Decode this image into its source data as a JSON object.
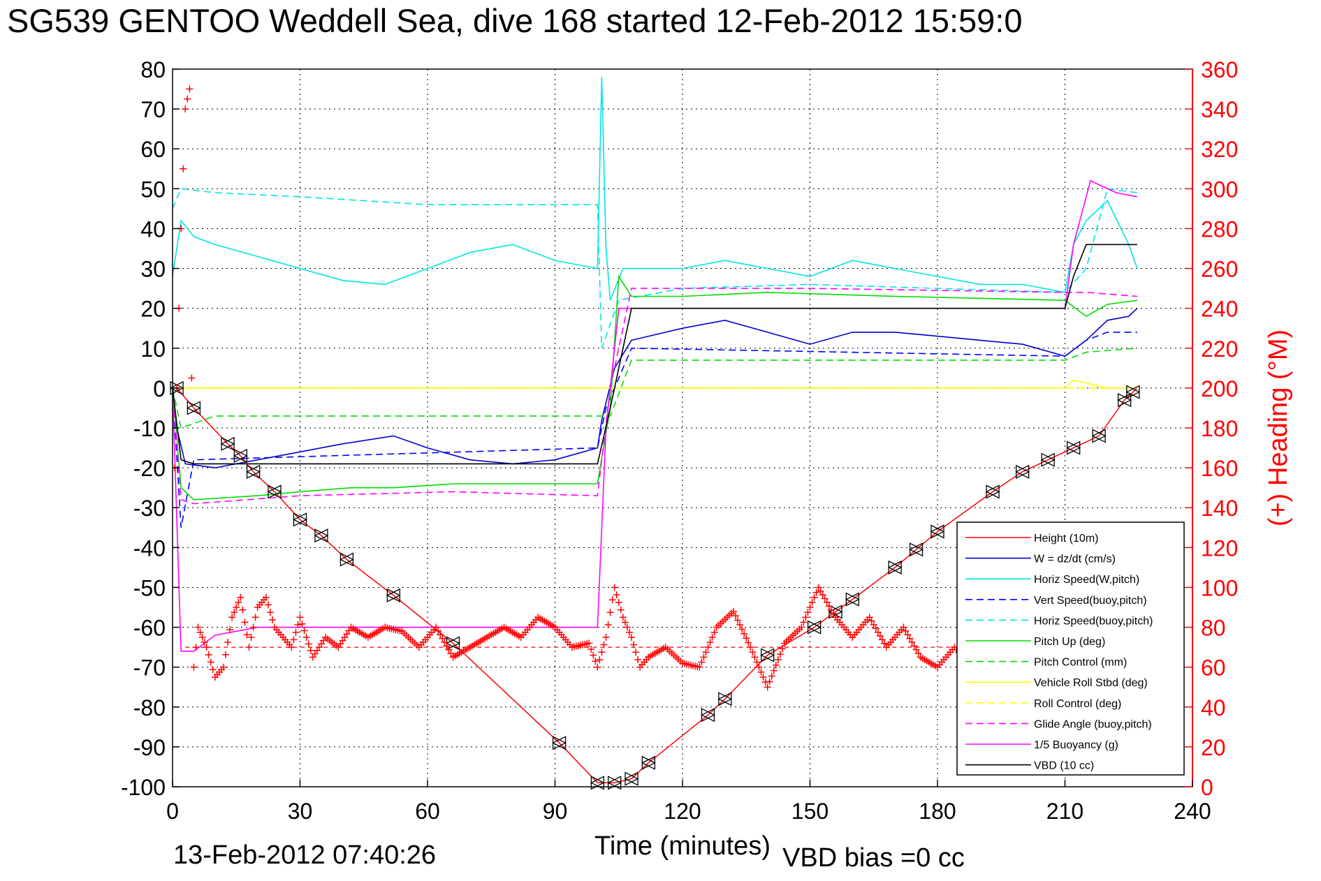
{
  "title": "SG539 GENTOO Weddell Sea, dive 168 started 12-Feb-2012 15:59:0",
  "footer": {
    "date": "13-Feb-2012 07:40:26",
    "vbd_bias": "VBD bias =0 cc"
  },
  "colors": {
    "red": "#ff0000",
    "blue": "#0000cc",
    "cyan": "#00e5e5",
    "green": "#00dd00",
    "yellow": "#ffff00",
    "magenta": "#ff00ff",
    "black": "#000000"
  },
  "chart_data": {
    "type": "line",
    "title": "SG539 GENTOO Weddell Sea, dive 168 started 12-Feb-2012 15:59:0",
    "xlabel": "Time (minutes)",
    "ylabel": "",
    "y2label": "(+) Heading (°M)",
    "xlim": [
      0,
      240
    ],
    "ylim": [
      -100,
      80
    ],
    "y2lim": [
      0,
      360
    ],
    "xticks": [
      0,
      30,
      60,
      90,
      120,
      150,
      180,
      210,
      240
    ],
    "yticks": [
      80,
      70,
      60,
      50,
      40,
      30,
      20,
      10,
      0,
      -10,
      -20,
      -30,
      -40,
      -50,
      -60,
      -70,
      -80,
      -90,
      -100
    ],
    "y2ticks": [
      360,
      340,
      320,
      300,
      280,
      260,
      240,
      220,
      200,
      180,
      160,
      140,
      120,
      100,
      80,
      60,
      40,
      20,
      0
    ],
    "grid": true,
    "legend_position": "bottom-right",
    "series": [
      {
        "name": "Height (10m)",
        "color": "#ff0000",
        "style": "solid",
        "x": [
          0,
          1,
          5,
          13,
          16,
          19,
          24,
          30,
          35,
          41,
          52,
          66,
          91,
          100,
          104,
          108,
          112,
          126,
          130,
          140,
          151,
          160,
          170,
          180,
          193,
          200,
          206,
          212,
          218,
          224,
          227
        ],
        "y": [
          0,
          0,
          -5,
          -14,
          -17,
          -21,
          -26,
          -33,
          -37,
          -43,
          -52,
          -64,
          -89,
          -99,
          -99,
          -98,
          -94,
          -82,
          -78,
          -67,
          -60,
          -53,
          -45,
          -36,
          -26,
          -21,
          -18,
          -15,
          -12,
          -3,
          0
        ]
      },
      {
        "name": "W = dz/dt (cm/s)",
        "color": "#0000cc",
        "style": "solid",
        "x": [
          0,
          1,
          3,
          10,
          20,
          30,
          40,
          52,
          60,
          70,
          80,
          90,
          100,
          101,
          104,
          108,
          120,
          130,
          140,
          150,
          160,
          170,
          180,
          190,
          200,
          210,
          215,
          220,
          225,
          227
        ],
        "y": [
          0,
          -10,
          -19,
          -20,
          -18,
          -16,
          -14,
          -12,
          -15,
          -18,
          -19,
          -18,
          -15,
          -8,
          5,
          12,
          15,
          17,
          14,
          11,
          14,
          14,
          13,
          12,
          11,
          8,
          12,
          17,
          18,
          20
        ]
      },
      {
        "name": "Horiz Speed(W,pitch)",
        "color": "#00e5e5",
        "style": "solid",
        "x": [
          0,
          2,
          5,
          10,
          20,
          30,
          40,
          50,
          60,
          70,
          80,
          90,
          100,
          101,
          102,
          103,
          106,
          110,
          120,
          130,
          140,
          150,
          160,
          170,
          180,
          190,
          200,
          210,
          212,
          215,
          220,
          225,
          227
        ],
        "y": [
          28,
          42,
          38,
          36,
          33,
          30,
          27,
          26,
          30,
          34,
          36,
          32,
          30,
          78,
          35,
          22,
          30,
          30,
          30,
          32,
          30,
          28,
          32,
          30,
          28,
          26,
          26,
          24,
          36,
          42,
          47,
          36,
          30
        ]
      },
      {
        "name": "Vert Speed(buoy,pitch)",
        "color": "#0000ff",
        "style": "dashed",
        "x": [
          0,
          2,
          5,
          100,
          102,
          108,
          210,
          215,
          220,
          227
        ],
        "y": [
          0,
          -35,
          -18,
          -15,
          -5,
          10,
          8,
          12,
          14,
          14
        ]
      },
      {
        "name": "Horiz Speed(buoy,pitch)",
        "color": "#00e5e5",
        "style": "dashed",
        "x": [
          0,
          2,
          10,
          30,
          60,
          100,
          101,
          105,
          120,
          150,
          180,
          210,
          215,
          220,
          227
        ],
        "y": [
          45,
          50,
          49,
          48,
          46,
          46,
          10,
          22,
          25,
          26,
          25,
          24,
          30,
          50,
          49
        ]
      },
      {
        "name": "Pitch Up (deg)",
        "color": "#00dd00",
        "style": "solid",
        "x": [
          0,
          2,
          5,
          20,
          30,
          42,
          52,
          66,
          100,
          103,
          105,
          108,
          120,
          140,
          170,
          210,
          215,
          220,
          227
        ],
        "y": [
          0,
          -25,
          -28,
          -27,
          -26,
          -25,
          -25,
          -24,
          -24,
          -5,
          28,
          23,
          23,
          24,
          23,
          22,
          18,
          21,
          22
        ]
      },
      {
        "name": "Pitch Control (mm)",
        "color": "#00dd00",
        "style": "dashed",
        "x": [
          0,
          2,
          10,
          66,
          100,
          103,
          108,
          150,
          210,
          215,
          227
        ],
        "y": [
          0,
          -10,
          -7,
          -7,
          -7,
          -7,
          7,
          7,
          7,
          9,
          10
        ]
      },
      {
        "name": "Vehicle Roll Stbd (deg)",
        "color": "#ffff00",
        "style": "solid",
        "x": [
          0,
          10,
          30,
          60,
          90,
          100,
          108,
          150,
          180,
          210,
          212,
          220,
          227
        ],
        "y": [
          0,
          0,
          0,
          0,
          0,
          0,
          0,
          0,
          0,
          0,
          2,
          0,
          0
        ]
      },
      {
        "name": "Roll Control (deg)",
        "color": "#ffff00",
        "style": "dashed",
        "x": [
          0,
          100,
          101,
          227
        ],
        "y": [
          0,
          0,
          0,
          0
        ]
      },
      {
        "name": "Glide Angle (buoy,pitch)",
        "color": "#ff00ff",
        "style": "dashed",
        "x": [
          0,
          2,
          5,
          30,
          66,
          100,
          103,
          108,
          150,
          210,
          215,
          227
        ],
        "y": [
          0,
          -28,
          -29,
          -27,
          -26,
          -27,
          0,
          25,
          25,
          24,
          24,
          23
        ]
      },
      {
        "name": "1/5 Buoyancy (g)",
        "color": "#ff00ff",
        "style": "solid",
        "x": [
          0,
          2,
          5,
          10,
          20,
          30,
          100,
          102,
          105,
          120,
          150,
          210,
          212,
          216,
          222,
          227
        ],
        "y": [
          0,
          -66,
          -66,
          -62,
          -60,
          -60,
          -60,
          -10,
          20,
          20,
          20,
          20,
          36,
          52,
          49,
          48
        ]
      },
      {
        "name": "VBD (10 cc)",
        "color": "#000000",
        "style": "solid",
        "x": [
          0,
          2,
          5,
          100,
          103,
          108,
          150,
          210,
          212,
          215,
          227
        ],
        "y": [
          0,
          -18,
          -19,
          -19,
          -5,
          20,
          20,
          20,
          28,
          36,
          36
        ]
      }
    ],
    "heading": {
      "name": "(+) Heading (°M)",
      "color": "#ff0000",
      "marker": "+",
      "axis": "right",
      "target": 70,
      "x": [
        0,
        2,
        3,
        4,
        5,
        6,
        8,
        10,
        12,
        14,
        16,
        18,
        20,
        22,
        24,
        26,
        28,
        30,
        33,
        36,
        39,
        42,
        46,
        50,
        54,
        58,
        62,
        66,
        70,
        74,
        78,
        82,
        86,
        90,
        94,
        98,
        100,
        102,
        104,
        106,
        108,
        110,
        112,
        116,
        120,
        124,
        128,
        132,
        136,
        140,
        144,
        148,
        152,
        156,
        160,
        164,
        168,
        172,
        176,
        180,
        184,
        186
      ],
      "y": [
        120,
        280,
        340,
        350,
        60,
        80,
        70,
        55,
        60,
        85,
        95,
        70,
        90,
        95,
        80,
        75,
        70,
        85,
        65,
        75,
        70,
        80,
        75,
        80,
        78,
        70,
        80,
        65,
        70,
        75,
        80,
        75,
        85,
        80,
        70,
        72,
        60,
        75,
        100,
        85,
        75,
        60,
        65,
        70,
        62,
        60,
        80,
        88,
        70,
        50,
        72,
        80,
        100,
        85,
        75,
        85,
        70,
        80,
        65,
        60,
        70,
        65
      ]
    },
    "target_heading_line": {
      "color": "#ff0000",
      "style": "dashed",
      "y_left": -65,
      "x": [
        3,
        227
      ]
    },
    "legend": [
      "Height (10m)",
      "W = dz/dt (cm/s)",
      "Horiz Speed(W,pitch)",
      "Vert Speed(buoy,pitch)",
      "Horiz Speed(buoy,pitch)",
      "Pitch Up (deg)",
      "Pitch Control (mm)",
      "Vehicle Roll Stbd (deg)",
      "Roll Control (deg)",
      "Glide Angle (buoy,pitch)",
      "1/5 Buoyancy (g)",
      "VBD (10 cc)"
    ],
    "triangle_markers_x": [
      1,
      5,
      13,
      16,
      19,
      24,
      30,
      35,
      41,
      52,
      66,
      91,
      100,
      104,
      108,
      112,
      126,
      130,
      140,
      151,
      156,
      160,
      170,
      175,
      180,
      193,
      200,
      206,
      212,
      218,
      224,
      226
    ]
  }
}
